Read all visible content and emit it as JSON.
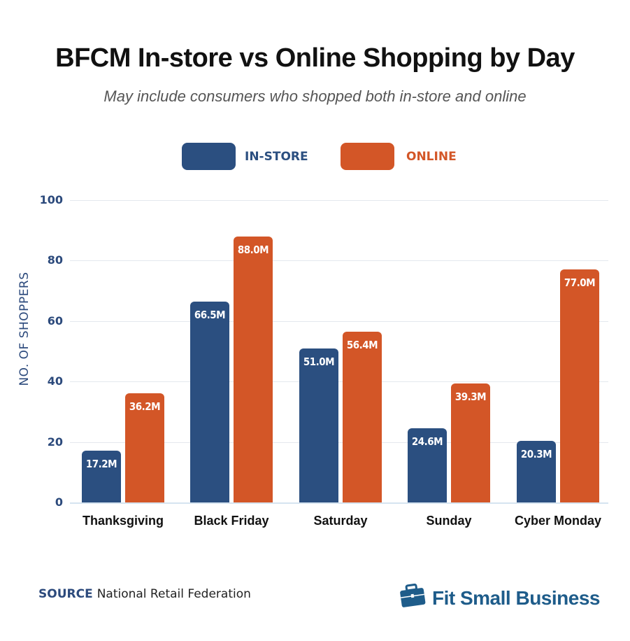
{
  "header": {
    "title": "BFCM In-store vs Online Shopping by Day",
    "subtitle": "May include consumers who shopped both in-store and online"
  },
  "legend": {
    "items": [
      {
        "label": "IN-STORE",
        "color": "#2b4f80"
      },
      {
        "label": "ONLINE",
        "color": "#d35627"
      }
    ]
  },
  "yaxis": {
    "label": "NO. OF SHOPPERS",
    "ticks": [
      "0",
      "20",
      "40",
      "60",
      "80",
      "100"
    ]
  },
  "footer": {
    "source_key": "SOURCE",
    "source_value": "National Retail Federation",
    "brand": "Fit Small Business",
    "brand_icon": "briefcase-icon"
  },
  "colors": {
    "instore": "#2b4f80",
    "online": "#d35627",
    "axis_text": "#2c4a7c",
    "brand": "#1e5c8a"
  },
  "chart_data": {
    "type": "bar",
    "title": "BFCM In-store vs Online Shopping by Day",
    "subtitle": "May include consumers who shopped both in-store and online",
    "xlabel": "",
    "ylabel": "NO. OF SHOPPERS",
    "ylim": [
      0,
      100
    ],
    "yticks": [
      0,
      20,
      40,
      60,
      80,
      100
    ],
    "grid": true,
    "legend_position": "top",
    "categories": [
      "Thanksgiving",
      "Black Friday",
      "Saturday",
      "Sunday",
      "Cyber Monday"
    ],
    "series": [
      {
        "name": "IN-STORE",
        "values": [
          17.2,
          66.5,
          51.0,
          24.6,
          20.3
        ],
        "labels": [
          "17.2M",
          "66.5M",
          "51.0M",
          "24.6M",
          "20.3M"
        ],
        "color": "#2b4f80"
      },
      {
        "name": "ONLINE",
        "values": [
          36.2,
          88.0,
          56.4,
          39.3,
          77.0
        ],
        "labels": [
          "36.2M",
          "88.0M",
          "56.4M",
          "39.3M",
          "77.0M"
        ],
        "color": "#d35627"
      }
    ],
    "source": "National Retail Federation"
  }
}
